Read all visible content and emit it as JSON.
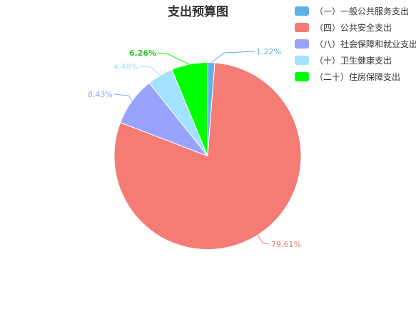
{
  "chart_data": {
    "type": "pie",
    "title": "支出预算图",
    "slices": [
      {
        "name": "（一）一般公共服务支出",
        "value": 1.22,
        "label": "1.22%",
        "color": "#5eaee8"
      },
      {
        "name": "（四）公共安全支出",
        "value": 79.61,
        "label": "79.61%",
        "color": "#f47c75"
      },
      {
        "name": "（八）社会保障和就业支出",
        "value": 8.43,
        "label": "8.43%",
        "color": "#97a3ff"
      },
      {
        "name": "（十）卫生健康支出",
        "value": 4.48,
        "label": "4.48%",
        "color": "#a3e2ff"
      },
      {
        "name": "（二十）住房保障支出",
        "value": 6.26,
        "label": "6.26%",
        "color": "#00ff00"
      }
    ],
    "legend_position": "top-right"
  }
}
